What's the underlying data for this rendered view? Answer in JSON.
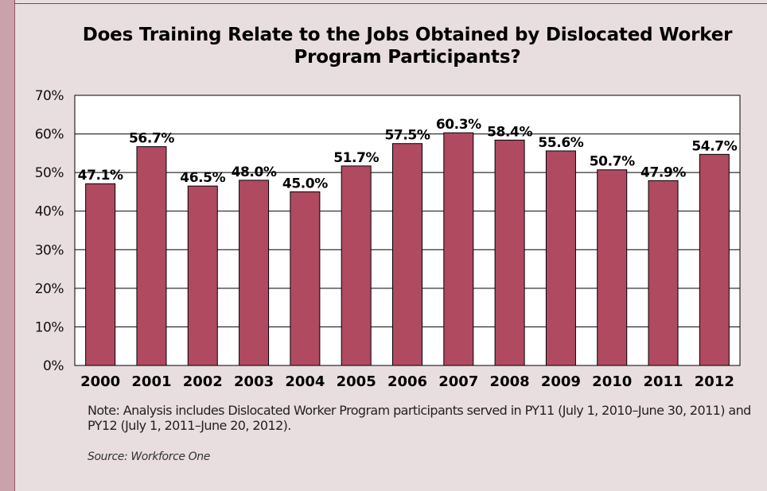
{
  "chart_data": {
    "type": "bar",
    "title": "Does Training Relate to the Jobs Obtained by Dislocated Worker Program Participants?",
    "categories": [
      "2000",
      "2001",
      "2002",
      "2003",
      "2004",
      "2005",
      "2006",
      "2007",
      "2008",
      "2009",
      "2010",
      "2011",
      "2012"
    ],
    "values": [
      47.1,
      56.7,
      46.5,
      48.0,
      45.0,
      51.7,
      57.5,
      60.3,
      58.4,
      55.6,
      50.7,
      47.9,
      54.7
    ],
    "data_labels": [
      "47.1%",
      "56.7%",
      "46.5%",
      "48.0%",
      "45.0%",
      "51.7%",
      "57.5%",
      "60.3%",
      "58.4%",
      "55.6%",
      "50.7%",
      "47.9%",
      "54.7%"
    ],
    "ylim": [
      0,
      70
    ],
    "yticks": [
      "0%",
      "10%",
      "20%",
      "30%",
      "40%",
      "50%",
      "60%",
      "70%"
    ],
    "grid": true,
    "bar_color": "#b04a60",
    "xlabel": "",
    "ylabel": ""
  },
  "footnote": "Note: Analysis includes Dislocated Worker Program participants served in PY11 (July 1, 2010–June 30, 2011) and PY12 (July 1, 2011–June 20, 2012).",
  "source": "Source: Workforce One"
}
